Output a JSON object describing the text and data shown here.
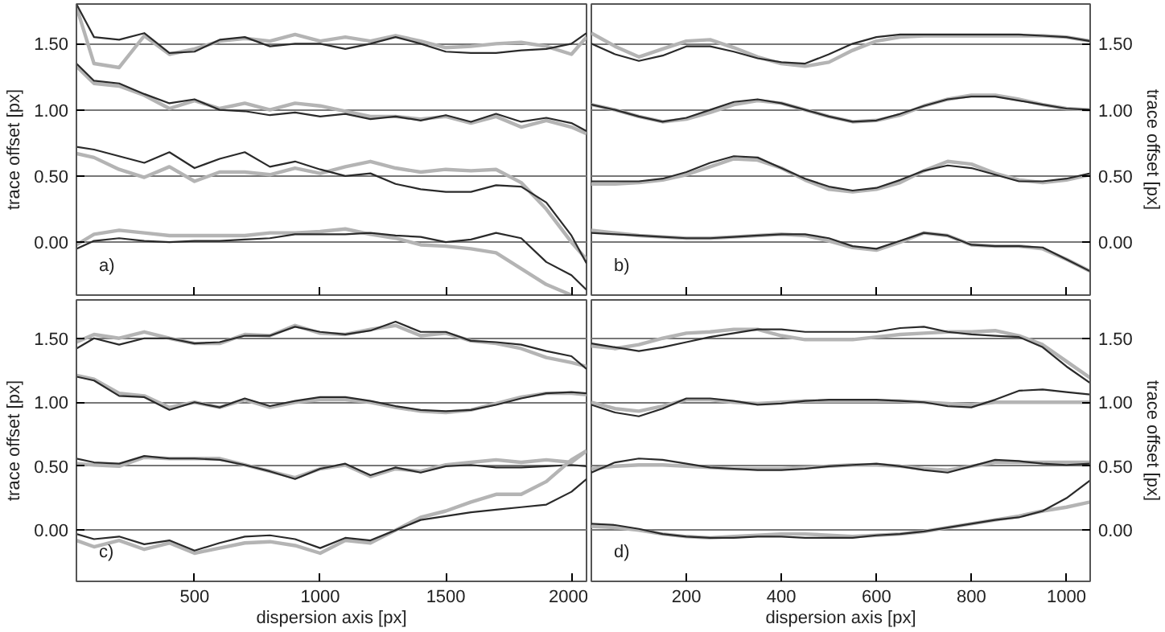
{
  "chart_data": [
    {
      "type": "line",
      "ylabel": "trace offset [px]",
      "annotations": [
        "a)"
      ],
      "grid": "y",
      "tick_labels": "y",
      "xlim": [
        30,
        2060
      ],
      "xticks": [
        500,
        1000,
        1500,
        2000
      ],
      "ylim": [
        -0.4,
        1.8
      ],
      "yticks": [
        {
          "value": 0,
          "label": "0.00"
        },
        {
          "value": 0.5,
          "label": "0.50"
        },
        {
          "value": 1,
          "label": "1.00"
        },
        {
          "value": 1.5,
          "label": "1.50"
        }
      ],
      "x": [
        30,
        100,
        200,
        300,
        400,
        500,
        600,
        700,
        800,
        900,
        1000,
        1100,
        1200,
        1300,
        1400,
        1500,
        1600,
        1700,
        1800,
        1900,
        2000,
        2060
      ],
      "series": [
        {
          "color": "#b4b4b4",
          "values": [
            1.78,
            1.35,
            1.32,
            1.56,
            1.42,
            1.46,
            1.52,
            1.54,
            1.52,
            1.57,
            1.52,
            1.55,
            1.52,
            1.56,
            1.52,
            1.47,
            1.48,
            1.5,
            1.51,
            1.48,
            1.42,
            1.55
          ]
        },
        {
          "color": "#2a2a2a",
          "values": [
            1.8,
            1.55,
            1.53,
            1.58,
            1.43,
            1.44,
            1.53,
            1.55,
            1.48,
            1.5,
            1.5,
            1.46,
            1.5,
            1.55,
            1.5,
            1.44,
            1.43,
            1.43,
            1.45,
            1.46,
            1.5,
            1.58
          ]
        },
        {
          "color": "#b4b4b4",
          "values": [
            1.33,
            1.2,
            1.18,
            1.11,
            1.01,
            1.07,
            1.01,
            1.05,
            1.0,
            1.05,
            1.03,
            0.99,
            0.95,
            0.95,
            0.93,
            0.95,
            0.9,
            0.95,
            0.87,
            0.92,
            0.87,
            0.82
          ]
        },
        {
          "color": "#2a2a2a",
          "values": [
            1.35,
            1.22,
            1.2,
            1.12,
            1.05,
            1.08,
            1.0,
            0.99,
            0.96,
            0.98,
            0.95,
            0.97,
            0.93,
            0.95,
            0.92,
            0.96,
            0.91,
            0.97,
            0.91,
            0.94,
            0.9,
            0.84
          ]
        },
        {
          "color": "#b4b4b4",
          "values": [
            0.67,
            0.64,
            0.55,
            0.49,
            0.57,
            0.46,
            0.53,
            0.53,
            0.51,
            0.56,
            0.52,
            0.57,
            0.61,
            0.56,
            0.53,
            0.55,
            0.54,
            0.55,
            0.45,
            0.25,
            0.0,
            -0.13
          ]
        },
        {
          "color": "#2a2a2a",
          "values": [
            0.72,
            0.7,
            0.65,
            0.6,
            0.68,
            0.56,
            0.63,
            0.68,
            0.57,
            0.61,
            0.55,
            0.5,
            0.52,
            0.44,
            0.4,
            0.38,
            0.38,
            0.43,
            0.42,
            0.3,
            0.05,
            -0.16
          ]
        },
        {
          "color": "#b4b4b4",
          "values": [
            -0.02,
            0.06,
            0.09,
            0.07,
            0.05,
            0.05,
            0.05,
            0.05,
            0.07,
            0.07,
            0.08,
            0.1,
            0.06,
            0.03,
            -0.02,
            -0.03,
            -0.05,
            -0.08,
            -0.2,
            -0.32,
            -0.4,
            null
          ]
        },
        {
          "color": "#2a2a2a",
          "values": [
            -0.05,
            0.01,
            0.03,
            0.01,
            0.0,
            0.01,
            0.01,
            0.02,
            0.03,
            0.06,
            0.06,
            0.06,
            0.07,
            0.05,
            0.04,
            0.0,
            0.02,
            0.07,
            0.03,
            -0.15,
            -0.25,
            -0.36
          ]
        }
      ]
    },
    {
      "type": "line",
      "ylabel": "trace offset [px]",
      "annotations": [
        "b)"
      ],
      "grid": "y",
      "tick_labels": "y",
      "xlim": [
        0,
        1050
      ],
      "xticks": [
        200,
        400,
        600,
        800,
        1000
      ],
      "ylim": [
        -0.4,
        1.8
      ],
      "yticks": [
        {
          "value": 0,
          "label": "0.00"
        },
        {
          "value": 0.5,
          "label": "0.50"
        },
        {
          "value": 1,
          "label": "1.00"
        },
        {
          "value": 1.5,
          "label": "1.50"
        }
      ],
      "x": [
        0,
        50,
        100,
        150,
        200,
        250,
        300,
        350,
        400,
        450,
        500,
        550,
        600,
        650,
        700,
        750,
        800,
        850,
        900,
        950,
        1000,
        1050
      ],
      "series": [
        {
          "color": "#b4b4b4",
          "values": [
            1.58,
            1.48,
            1.4,
            1.46,
            1.52,
            1.53,
            1.47,
            1.4,
            1.35,
            1.33,
            1.36,
            1.45,
            1.52,
            1.55,
            1.56,
            1.56,
            1.56,
            1.56,
            1.56,
            1.56,
            1.55,
            1.52
          ]
        },
        {
          "color": "#2a2a2a",
          "values": [
            1.5,
            1.42,
            1.37,
            1.41,
            1.48,
            1.48,
            1.44,
            1.39,
            1.36,
            1.35,
            1.42,
            1.5,
            1.55,
            1.57,
            1.57,
            1.57,
            1.57,
            1.57,
            1.57,
            1.56,
            1.55,
            1.52
          ]
        },
        {
          "color": "#b4b4b4",
          "values": [
            1.04,
            1.0,
            0.95,
            0.91,
            0.93,
            0.98,
            1.04,
            1.07,
            1.05,
            1.0,
            0.95,
            0.91,
            0.92,
            0.96,
            1.03,
            1.08,
            1.11,
            1.11,
            1.08,
            1.04,
            1.01,
            1.0
          ]
        },
        {
          "color": "#2a2a2a",
          "values": [
            1.04,
            1.0,
            0.95,
            0.91,
            0.94,
            1.0,
            1.06,
            1.08,
            1.05,
            1.0,
            0.95,
            0.91,
            0.92,
            0.97,
            1.03,
            1.08,
            1.1,
            1.1,
            1.07,
            1.04,
            1.01,
            1.0
          ]
        },
        {
          "color": "#b4b4b4",
          "values": [
            0.44,
            0.44,
            0.45,
            0.47,
            0.51,
            0.57,
            0.63,
            0.62,
            0.56,
            0.47,
            0.4,
            0.38,
            0.4,
            0.45,
            0.54,
            0.61,
            0.59,
            0.52,
            0.47,
            0.45,
            0.47,
            0.51
          ]
        },
        {
          "color": "#2a2a2a",
          "values": [
            0.46,
            0.46,
            0.46,
            0.48,
            0.53,
            0.6,
            0.65,
            0.64,
            0.56,
            0.48,
            0.42,
            0.39,
            0.41,
            0.47,
            0.54,
            0.58,
            0.56,
            0.51,
            0.46,
            0.46,
            0.48,
            0.52
          ]
        },
        {
          "color": "#b4b4b4",
          "values": [
            0.09,
            0.07,
            0.05,
            0.04,
            0.03,
            0.03,
            0.04,
            0.05,
            0.06,
            0.05,
            0.01,
            -0.04,
            -0.06,
            0.0,
            0.07,
            0.05,
            -0.02,
            -0.03,
            -0.03,
            -0.05,
            -0.13,
            -0.22
          ]
        },
        {
          "color": "#2a2a2a",
          "values": [
            0.07,
            0.06,
            0.05,
            0.04,
            0.03,
            0.03,
            0.04,
            0.05,
            0.06,
            0.06,
            0.03,
            -0.03,
            -0.05,
            0.01,
            0.07,
            0.05,
            -0.02,
            -0.03,
            -0.03,
            -0.04,
            -0.13,
            -0.22
          ]
        }
      ]
    },
    {
      "type": "line",
      "xlabel": "dispersion axis [px]",
      "ylabel": "trace offset [px]",
      "annotations": [
        "c)"
      ],
      "grid": "y",
      "xlim": [
        30,
        2060
      ],
      "xticks": [
        500,
        1000,
        1500,
        2000
      ],
      "ylim": [
        -0.4,
        1.8
      ],
      "yticks": [
        {
          "value": 0,
          "label": "0.00"
        },
        {
          "value": 0.5,
          "label": "0.50"
        },
        {
          "value": 1,
          "label": "1.00"
        },
        {
          "value": 1.5,
          "label": "1.50"
        }
      ],
      "x": [
        30,
        100,
        200,
        300,
        400,
        500,
        600,
        700,
        800,
        900,
        1000,
        1100,
        1200,
        1300,
        1400,
        1500,
        1600,
        1700,
        1800,
        1900,
        2000,
        2060
      ],
      "series": [
        {
          "color": "#b4b4b4",
          "values": [
            1.47,
            1.53,
            1.5,
            1.55,
            1.5,
            1.46,
            1.46,
            1.53,
            1.52,
            1.6,
            1.54,
            1.53,
            1.57,
            1.6,
            1.52,
            1.54,
            1.48,
            1.46,
            1.42,
            1.35,
            1.31,
            1.28
          ]
        },
        {
          "color": "#2a2a2a",
          "values": [
            1.42,
            1.5,
            1.45,
            1.5,
            1.5,
            1.46,
            1.47,
            1.52,
            1.52,
            1.59,
            1.55,
            1.53,
            1.56,
            1.63,
            1.55,
            1.55,
            1.48,
            1.47,
            1.45,
            1.4,
            1.36,
            1.26
          ]
        },
        {
          "color": "#b4b4b4",
          "values": [
            1.21,
            1.18,
            1.07,
            1.05,
            0.96,
            1.0,
            0.96,
            1.02,
            0.96,
            1.0,
            1.02,
            1.02,
            1.0,
            0.96,
            0.93,
            0.92,
            0.94,
            0.99,
            1.04,
            1.07,
            1.07,
            1.06
          ]
        },
        {
          "color": "#2a2a2a",
          "values": [
            1.2,
            1.17,
            1.05,
            1.04,
            0.94,
            1.0,
            0.96,
            1.03,
            0.97,
            1.01,
            1.04,
            1.04,
            1.01,
            0.97,
            0.94,
            0.93,
            0.94,
            0.98,
            1.03,
            1.07,
            1.08,
            1.07
          ]
        },
        {
          "color": "#b4b4b4",
          "values": [
            0.52,
            0.51,
            0.5,
            0.57,
            0.56,
            0.56,
            0.56,
            0.51,
            0.46,
            0.41,
            0.48,
            0.51,
            0.42,
            0.48,
            0.46,
            0.51,
            0.53,
            0.55,
            0.53,
            0.55,
            0.53,
            0.62
          ]
        },
        {
          "color": "#2a2a2a",
          "values": [
            0.56,
            0.53,
            0.52,
            0.58,
            0.56,
            0.56,
            0.55,
            0.51,
            0.46,
            0.4,
            0.48,
            0.52,
            0.43,
            0.49,
            0.45,
            0.5,
            0.51,
            0.49,
            0.49,
            0.5,
            0.51,
            0.5
          ]
        },
        {
          "color": "#b4b4b4",
          "values": [
            -0.08,
            -0.13,
            -0.08,
            -0.15,
            -0.1,
            -0.18,
            -0.14,
            -0.1,
            -0.09,
            -0.12,
            -0.18,
            -0.08,
            -0.1,
            0.0,
            0.1,
            0.15,
            0.22,
            0.28,
            0.28,
            0.38,
            0.55,
            0.62
          ]
        },
        {
          "color": "#2a2a2a",
          "values": [
            -0.03,
            -0.07,
            -0.05,
            -0.11,
            -0.08,
            -0.16,
            -0.1,
            -0.05,
            -0.04,
            -0.07,
            -0.14,
            -0.06,
            -0.08,
            0.0,
            0.08,
            0.11,
            0.14,
            0.16,
            0.18,
            0.2,
            0.3,
            0.4
          ]
        }
      ]
    },
    {
      "type": "line",
      "xlabel": "dispersion axis [px]",
      "ylabel": "trace offset [px]",
      "annotations": [
        "d)"
      ],
      "grid": "y",
      "xlim": [
        0,
        1050
      ],
      "xticks": [
        200,
        400,
        600,
        800,
        1000
      ],
      "ylim": [
        -0.4,
        1.8
      ],
      "yticks": [
        {
          "value": 0,
          "label": "0.00"
        },
        {
          "value": 0.5,
          "label": "0.50"
        },
        {
          "value": 1,
          "label": "1.00"
        },
        {
          "value": 1.5,
          "label": "1.50"
        }
      ],
      "x": [
        0,
        50,
        100,
        150,
        200,
        250,
        300,
        350,
        400,
        450,
        500,
        550,
        600,
        650,
        700,
        750,
        800,
        850,
        900,
        950,
        1000,
        1050
      ],
      "series": [
        {
          "color": "#b4b4b4",
          "values": [
            1.44,
            1.42,
            1.45,
            1.5,
            1.54,
            1.55,
            1.57,
            1.57,
            1.52,
            1.49,
            1.49,
            1.49,
            1.51,
            1.53,
            1.54,
            1.55,
            1.55,
            1.56,
            1.52,
            1.45,
            1.32,
            1.19
          ]
        },
        {
          "color": "#2a2a2a",
          "values": [
            1.46,
            1.43,
            1.4,
            1.43,
            1.47,
            1.51,
            1.54,
            1.57,
            1.57,
            1.55,
            1.55,
            1.55,
            1.55,
            1.58,
            1.59,
            1.55,
            1.53,
            1.52,
            1.51,
            1.43,
            1.28,
            1.15
          ]
        },
        {
          "color": "#b4b4b4",
          "values": [
            1.0,
            0.95,
            0.93,
            0.97,
            1.02,
            1.02,
            1.0,
            0.99,
            1.0,
            1.01,
            1.01,
            1.01,
            1.01,
            1.01,
            1.0,
            0.99,
            0.98,
            1.0,
            1.0,
            1.0,
            1.0,
            1.0
          ]
        },
        {
          "color": "#2a2a2a",
          "values": [
            0.98,
            0.92,
            0.89,
            0.95,
            1.03,
            1.03,
            1.01,
            0.98,
            0.99,
            1.01,
            1.02,
            1.02,
            1.02,
            1.01,
            1.0,
            0.97,
            0.96,
            1.02,
            1.09,
            1.1,
            1.08,
            1.06
          ]
        },
        {
          "color": "#b4b4b4",
          "values": [
            0.48,
            0.5,
            0.51,
            0.51,
            0.5,
            0.49,
            0.48,
            0.48,
            0.48,
            0.49,
            0.5,
            0.51,
            0.51,
            0.5,
            0.48,
            0.47,
            0.5,
            0.53,
            0.53,
            0.53,
            0.53,
            0.53
          ]
        },
        {
          "color": "#2a2a2a",
          "values": [
            0.45,
            0.53,
            0.56,
            0.55,
            0.52,
            0.49,
            0.48,
            0.47,
            0.47,
            0.48,
            0.5,
            0.51,
            0.52,
            0.5,
            0.47,
            0.45,
            0.5,
            0.55,
            0.54,
            0.52,
            0.51,
            0.52
          ]
        },
        {
          "color": "#b4b4b4",
          "values": [
            0.03,
            0.02,
            0.0,
            -0.03,
            -0.05,
            -0.06,
            -0.05,
            -0.04,
            -0.03,
            -0.03,
            -0.04,
            -0.05,
            -0.04,
            -0.03,
            -0.01,
            0.02,
            0.05,
            0.08,
            0.11,
            0.15,
            0.18,
            0.22
          ]
        },
        {
          "color": "#2a2a2a",
          "values": [
            0.05,
            0.04,
            0.01,
            -0.03,
            -0.05,
            -0.06,
            -0.06,
            -0.05,
            -0.05,
            -0.06,
            -0.06,
            -0.06,
            -0.04,
            -0.03,
            -0.01,
            0.02,
            0.05,
            0.08,
            0.1,
            0.15,
            0.25,
            0.39
          ]
        }
      ]
    }
  ]
}
